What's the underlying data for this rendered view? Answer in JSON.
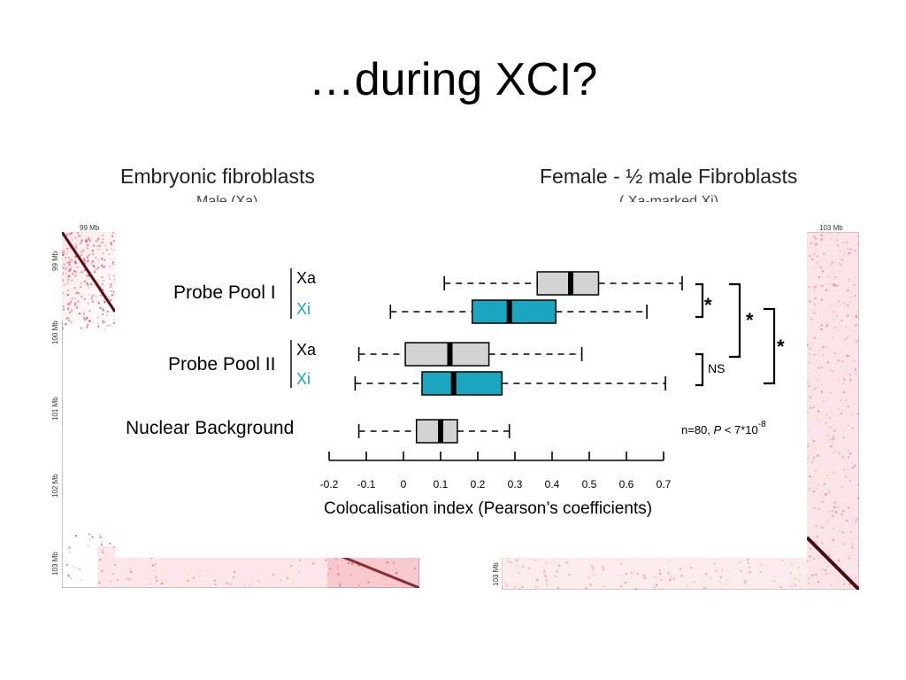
{
  "slide": {
    "title": "…during XCI?"
  },
  "panels": {
    "left": {
      "title": "Embryonic fibroblasts",
      "subtitle": "Male (Xa)",
      "axis_top": "99 Mb",
      "axis_side": [
        "99 Mb",
        "100 Mb",
        "101 Mb",
        "102 Mb",
        "103 Mb"
      ]
    },
    "right": {
      "title": "Female - ½ male Fibroblasts",
      "subtitle": "( Xa-marked Xi)",
      "axis_top": "103 Mb",
      "axis_side": [
        "103 Mb"
      ]
    }
  },
  "colors": {
    "xa_box": "#d3d3d3",
    "xi_box": "#1aa6bf",
    "xi_label": "#1aa6bf",
    "hic_red": "#d0102a"
  },
  "chart_data": {
    "type": "boxplot",
    "orientation": "horizontal",
    "xlabel": "Colocalisation index (Pearson’s coefficients)",
    "xlim": [
      -0.2,
      0.7
    ],
    "xticks": [
      -0.2,
      -0.1,
      0,
      0.1,
      0.2,
      0.3,
      0.4,
      0.5,
      0.6,
      0.7
    ],
    "xtick_labels": [
      "-0.2",
      "-0.1",
      "0",
      "0.1",
      "0.2",
      "0.3",
      "0.4",
      "0.5",
      "0.6",
      "0.7"
    ],
    "groups": [
      {
        "label": "Probe Pool I",
        "series": [
          {
            "name": "Xa",
            "color": "#d3d3d3",
            "whisker_low": 0.11,
            "q1": 0.36,
            "median": 0.45,
            "q3": 0.525,
            "whisker_high": 0.75
          },
          {
            "name": "Xi",
            "color": "#1aa6bf",
            "whisker_low": -0.035,
            "q1": 0.185,
            "median": 0.285,
            "q3": 0.41,
            "whisker_high": 0.655
          }
        ]
      },
      {
        "label": "Probe Pool II",
        "series": [
          {
            "name": "Xa",
            "color": "#d3d3d3",
            "whisker_low": -0.12,
            "q1": 0.005,
            "median": 0.125,
            "q3": 0.23,
            "whisker_high": 0.48
          },
          {
            "name": "Xi",
            "color": "#1aa6bf",
            "whisker_low": -0.13,
            "q1": 0.05,
            "median": 0.135,
            "q3": 0.265,
            "whisker_high": 0.705
          }
        ]
      },
      {
        "label": "Nuclear Background",
        "series": [
          {
            "name": "",
            "color": "#d3d3d3",
            "whisker_low": -0.12,
            "q1": 0.035,
            "median": 0.1,
            "q3": 0.145,
            "whisker_high": 0.285
          }
        ]
      }
    ],
    "significance": [
      {
        "between": [
          "Probe Pool I Xa",
          "Probe Pool I Xi"
        ],
        "label": "*"
      },
      {
        "between": [
          "Probe Pool II Xa",
          "Probe Pool II Xi"
        ],
        "label": "NS"
      },
      {
        "between": [
          "Probe Pool I",
          "Probe Pool II Xa"
        ],
        "label": "*"
      },
      {
        "between": [
          "Probe Pool I",
          "Probe Pool II Xi"
        ],
        "label": "*"
      }
    ],
    "annotation": {
      "n_text": "n=80,",
      "p_symbol": "P",
      "p_text": " < 7*10",
      "p_exp": "-8"
    }
  }
}
